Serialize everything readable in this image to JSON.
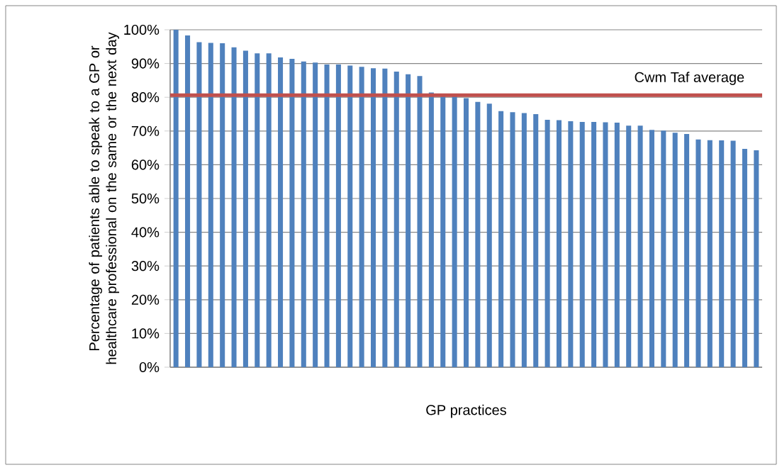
{
  "chart_data": {
    "type": "bar",
    "xlabel": "GP practices",
    "ylabel": "Percentage of patients able to speak to a GP or healthcare professional on the same or the next day",
    "categories": [
      null,
      null,
      null,
      null,
      null,
      null,
      null,
      null,
      null,
      null,
      null,
      null,
      null,
      null,
      null,
      null,
      null,
      null,
      null,
      null,
      null,
      null,
      null,
      null,
      null,
      null,
      null,
      null,
      null,
      null,
      null,
      null,
      null,
      null,
      null,
      null,
      null,
      null,
      null,
      null,
      null,
      null,
      null,
      null,
      null,
      null,
      null,
      null,
      null,
      null,
      null
    ],
    "values": [
      100,
      98.3,
      96.3,
      96.1,
      96.0,
      94.8,
      93.8,
      93.0,
      93.0,
      91.8,
      91.4,
      90.6,
      90.3,
      89.7,
      89.7,
      89.4,
      89.0,
      88.6,
      88.5,
      87.6,
      86.8,
      86.3,
      81.4,
      80.7,
      80.5,
      79.7,
      78.6,
      78.1,
      75.9,
      75.6,
      75.3,
      75.0,
      73.3,
      73.2,
      72.9,
      72.7,
      72.7,
      72.6,
      72.5,
      71.6,
      71.6,
      70.3,
      70.1,
      69.5,
      69.1,
      67.5,
      67.3,
      67.2,
      67.1,
      64.7,
      64.3
    ],
    "color": "#4f81bd",
    "ylim": [
      0,
      100
    ],
    "yticks": [
      {
        "value": 0,
        "label": "0%"
      },
      {
        "value": 10,
        "label": "10%"
      },
      {
        "value": 20,
        "label": "20%"
      },
      {
        "value": 30,
        "label": "30%"
      },
      {
        "value": 40,
        "label": "40%"
      },
      {
        "value": 50,
        "label": "50%"
      },
      {
        "value": 60,
        "label": "60%"
      },
      {
        "value": 70,
        "label": "70%"
      },
      {
        "value": 80,
        "label": "80%"
      },
      {
        "value": 90,
        "label": "90%"
      },
      {
        "value": 100,
        "label": "100%"
      }
    ],
    "grid": "y",
    "ref_lines": [
      {
        "axis": "y",
        "value": 80.6,
        "label": "Cwm Taf average",
        "color": "#c0504d"
      }
    ]
  }
}
